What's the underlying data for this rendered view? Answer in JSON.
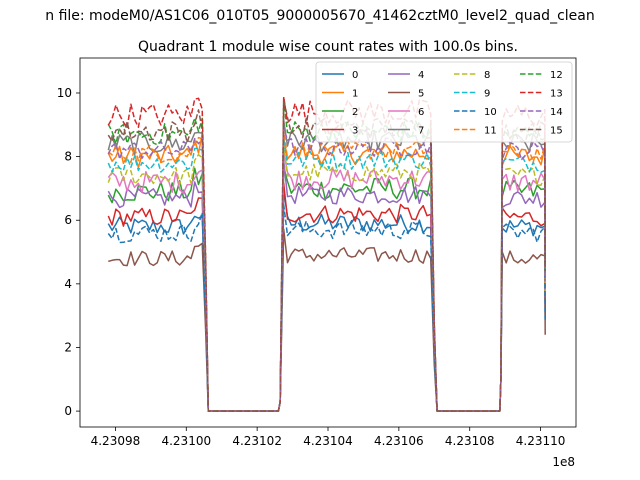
{
  "suptitle": "n file: modeM0/AS1C06_010T05_9000005670_41462cztM0_level2_quad_clean",
  "chart_data": {
    "type": "line",
    "title": "Quadrant 1 module wise count rates with 100.0s bins.",
    "xlabel": "",
    "ylabel": "",
    "x_offset_label": "1e8",
    "xlim": [
      4.23097,
      4.23111
    ],
    "ylim": [
      -0.5,
      11.1
    ],
    "xticks": [
      4.23098,
      4.231,
      4.23102,
      4.23104,
      4.23106,
      4.23108,
      4.2311
    ],
    "xtick_labels": [
      "4.23098",
      "4.23100",
      "4.23102",
      "4.23104",
      "4.23106",
      "4.23108",
      "4.23110"
    ],
    "yticks": [
      0,
      2,
      4,
      6,
      8,
      10
    ],
    "ytick_labels": [
      "0",
      "2",
      "4",
      "6",
      "8",
      "10"
    ],
    "grid": false,
    "legend_placement": "top-right",
    "legend_columns": 4,
    "segments": [
      {
        "x_start": 4.230978,
        "x_end": 4.2310045,
        "n": 26
      },
      {
        "x_start": 4.2310275,
        "x_end": 4.231069,
        "n": 40
      },
      {
        "x_start": 4.2310892,
        "x_end": 4.2311012,
        "n": 12
      }
    ],
    "drop_x": [
      4.2310055,
      4.2310062
    ],
    "zero_x": [
      4.2310065,
      4.231026
    ],
    "rise_x": [
      4.2310265,
      4.2310272
    ],
    "drop2_x": [
      4.23107,
      4.2310708
    ],
    "zero2_x": [
      4.2310712,
      4.2310885
    ],
    "rise2_x": [
      4.2310888,
      4.231089
    ],
    "series": [
      {
        "name": "0",
        "color": "#1f77b4",
        "dash": "solid",
        "level": 5.8,
        "amp": 0.3
      },
      {
        "name": "1",
        "color": "#ff7f0e",
        "dash": "solid",
        "level": 8.0,
        "amp": 0.35
      },
      {
        "name": "2",
        "color": "#2ca02c",
        "dash": "solid",
        "level": 6.9,
        "amp": 0.35
      },
      {
        "name": "3",
        "color": "#d62728",
        "dash": "solid",
        "level": 6.1,
        "amp": 0.3
      },
      {
        "name": "4",
        "color": "#9467bd",
        "dash": "solid",
        "level": 6.7,
        "amp": 0.3
      },
      {
        "name": "5",
        "color": "#8c564b",
        "dash": "solid",
        "level": 4.8,
        "amp": 0.25
      },
      {
        "name": "6",
        "color": "#e377c2",
        "dash": "solid",
        "level": 7.2,
        "amp": 0.35
      },
      {
        "name": "7",
        "color": "#7f7f7f",
        "dash": "solid",
        "level": 8.4,
        "amp": 0.35
      },
      {
        "name": "8",
        "color": "#bcbd22",
        "dash": "dashed",
        "level": 7.4,
        "amp": 0.3
      },
      {
        "name": "9",
        "color": "#17becf",
        "dash": "dashed",
        "level": 7.8,
        "amp": 0.3
      },
      {
        "name": "10",
        "color": "#1f77b4",
        "dash": "dashed",
        "level": 5.6,
        "amp": 0.3
      },
      {
        "name": "11",
        "color": "#ff7f0e",
        "dash": "dashed",
        "level": 8.1,
        "amp": 0.3
      },
      {
        "name": "12",
        "color": "#2ca02c",
        "dash": "dashed",
        "level": 8.7,
        "amp": 0.35
      },
      {
        "name": "13",
        "color": "#d62728",
        "dash": "dashed",
        "level": 9.3,
        "amp": 0.4
      },
      {
        "name": "14",
        "color": "#9467bd",
        "dash": "dashed",
        "level": 8.2,
        "amp": 0.3
      },
      {
        "name": "15",
        "color": "#8c564b",
        "dash": "dashed",
        "level": 8.8,
        "amp": 0.35
      }
    ]
  }
}
